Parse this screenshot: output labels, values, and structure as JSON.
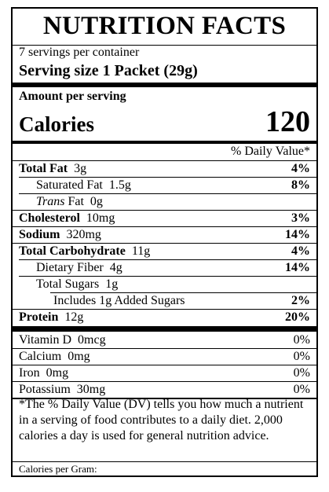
{
  "title": "NUTRITION FACTS",
  "servings_per_container": "7 servings per container",
  "serving_size": "Serving size  1 Packet (29g)",
  "amount_per_serving": "Amount per serving",
  "calories": {
    "label": "Calories",
    "value": "120"
  },
  "dv_header": "% Daily Value*",
  "nutrients": [
    {
      "name": "Total Fat",
      "amount": "3g",
      "dv": "4%"
    },
    {
      "name": "Saturated Fat",
      "amount": "1.5g",
      "dv": "8%"
    },
    {
      "name": "Trans",
      "name_suffix": "Fat",
      "amount": "0g",
      "dv": ""
    },
    {
      "name": "Cholesterol",
      "amount": "10mg",
      "dv": "3%"
    },
    {
      "name": "Sodium",
      "amount": "320mg",
      "dv": "14%"
    },
    {
      "name": "Total Carbohydrate",
      "amount": "11g",
      "dv": "4%"
    },
    {
      "name": "Dietary Fiber",
      "amount": "4g",
      "dv": "14%"
    },
    {
      "name": "Total Sugars",
      "amount": "1g",
      "dv": ""
    },
    {
      "name": "Includes 1g Added Sugars",
      "amount": "",
      "dv": "2%"
    },
    {
      "name": "Protein",
      "amount": "12g",
      "dv": "20%"
    }
  ],
  "vitamins": [
    {
      "name": "Vitamin D",
      "amount": "0mcg",
      "dv": "0%"
    },
    {
      "name": "Calcium",
      "amount": "0mg",
      "dv": "0%"
    },
    {
      "name": "Iron",
      "amount": "0mg",
      "dv": "0%"
    },
    {
      "name": "Potassium",
      "amount": "30mg",
      "dv": "0%"
    }
  ],
  "footnote": "*The % Daily Value (DV) tells you how much a nutrient in a serving of food contributes to a daily diet.  2,000 calories a day is used for general nutrition advice.",
  "calories_per_gram": "Calories per Gram:"
}
